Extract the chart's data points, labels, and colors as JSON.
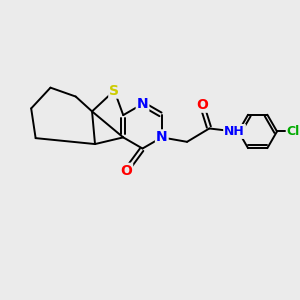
{
  "background_color": "#ebebeb",
  "atom_colors": {
    "S": "#cccc00",
    "N": "#0000ff",
    "O": "#ff0000",
    "C": "#000000",
    "Cl": "#00aa00",
    "H": "#808080"
  },
  "bond_color": "#000000",
  "bond_width": 1.4,
  "font_size": 9,
  "figsize": [
    3.0,
    3.0
  ],
  "dpi": 100
}
